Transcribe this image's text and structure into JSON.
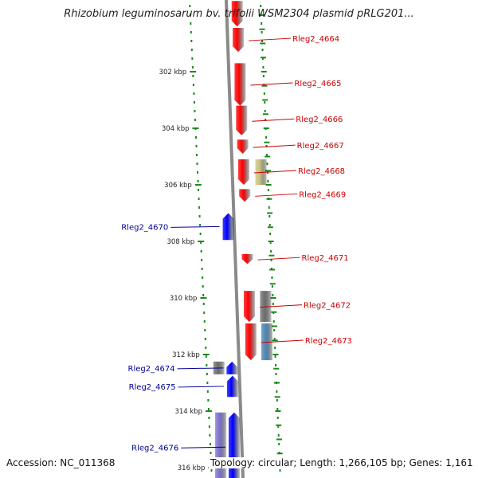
{
  "title": "Rhizobium leguminosarum bv. trifolii WSM2304 plasmid pRLG201...",
  "footer": {
    "accession": "Accession: NC_011368",
    "summary": "Topology: circular; Length: 1,266,105 bp; Genes: 1,161"
  },
  "colors": {
    "forward_gene": "#ff0000",
    "reverse_gene": "#0000ff",
    "forward_label": "#cc0000",
    "reverse_label": "#000099",
    "tick": "#1a8a1a",
    "backbone": "#8a8a8a",
    "khaki": "#c8c27a",
    "gray": "#6e6e6e",
    "steel": "#4a86b4",
    "lavender": "#7b6fd0"
  },
  "axis_labels": [
    {
      "kbp": 302,
      "text": "302 kbp"
    },
    {
      "kbp": 304,
      "text": "304 kbp"
    },
    {
      "kbp": 306,
      "text": "306 kbp"
    },
    {
      "kbp": 308,
      "text": "308 kbp"
    },
    {
      "kbp": 310,
      "text": "310 kbp"
    },
    {
      "kbp": 312,
      "text": "312 kbp"
    },
    {
      "kbp": 314,
      "text": "314 kbp"
    },
    {
      "kbp": 316,
      "text": "316 kbp"
    }
  ],
  "genes": [
    {
      "label": "",
      "strand": "+",
      "start_kbp": 299.5,
      "end_kbp": 300.4,
      "color": "forward_gene"
    },
    {
      "label": "Rleg2_4664",
      "strand": "+",
      "start_kbp": 300.45,
      "end_kbp": 301.3,
      "color": "forward_gene"
    },
    {
      "label": "Rleg2_4665",
      "strand": "+",
      "start_kbp": 301.7,
      "end_kbp": 303.2,
      "color": "forward_gene"
    },
    {
      "label": "Rleg2_4666",
      "strand": "+",
      "start_kbp": 303.2,
      "end_kbp": 304.25,
      "color": "forward_gene"
    },
    {
      "label": "Rleg2_4667",
      "strand": "+",
      "start_kbp": 304.4,
      "end_kbp": 304.9,
      "color": "forward_gene"
    },
    {
      "label": "Rleg2_4668",
      "strand": "+",
      "start_kbp": 305.1,
      "end_kbp": 306.0,
      "color": "forward_gene"
    },
    {
      "label": "Rleg2_4669",
      "strand": "+",
      "start_kbp": 306.15,
      "end_kbp": 306.6,
      "color": "forward_gene"
    },
    {
      "label": "Rleg2_4671",
      "strand": "+",
      "start_kbp": 308.45,
      "end_kbp": 308.8,
      "color": "forward_gene"
    },
    {
      "label": "Rleg2_4672",
      "strand": "+",
      "start_kbp": 309.75,
      "end_kbp": 310.85,
      "color": "forward_gene"
    },
    {
      "label": "Rleg2_4673",
      "strand": "+",
      "start_kbp": 310.9,
      "end_kbp": 312.2,
      "color": "forward_gene"
    },
    {
      "label": "Rleg2_4670",
      "strand": "-",
      "start_kbp": 307.0,
      "end_kbp": 307.95,
      "color": "reverse_gene"
    },
    {
      "label": "Rleg2_4674",
      "strand": "-",
      "start_kbp": 312.25,
      "end_kbp": 312.7,
      "color": "reverse_gene"
    },
    {
      "label": "Rleg2_4675",
      "strand": "-",
      "start_kbp": 312.75,
      "end_kbp": 313.5,
      "color": "reverse_gene"
    },
    {
      "label": "Rleg2_4676",
      "strand": "-",
      "start_kbp": 314.05,
      "end_kbp": 316.5,
      "color": "reverse_gene"
    }
  ],
  "features": [
    {
      "track": "fwd_aux",
      "start_kbp": 305.1,
      "end_kbp": 306.0,
      "color": "khaki"
    },
    {
      "track": "fwd_aux",
      "start_kbp": 309.75,
      "end_kbp": 310.85,
      "color": "gray"
    },
    {
      "track": "fwd_aux",
      "start_kbp": 310.9,
      "end_kbp": 312.2,
      "color": "steel"
    },
    {
      "track": "rev_aux",
      "start_kbp": 312.25,
      "end_kbp": 312.7,
      "color": "gray"
    },
    {
      "track": "rev_aux",
      "start_kbp": 314.05,
      "end_kbp": 316.5,
      "color": "lavender"
    }
  ]
}
